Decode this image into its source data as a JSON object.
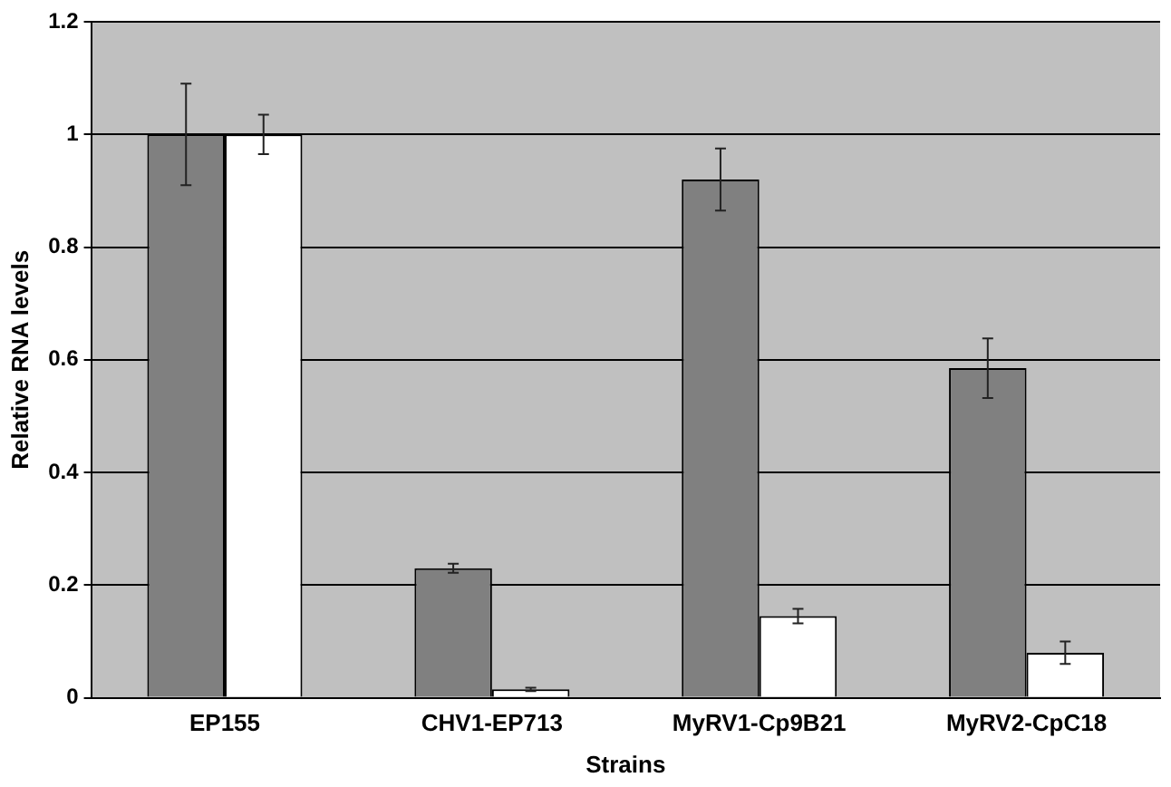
{
  "chart_data": {
    "type": "bar",
    "xlabel": "Strains",
    "ylabel": "Relative RNA levels",
    "categories": [
      "EP155",
      "CHV1-EP713",
      "MyRV1-Cp9B21",
      "MyRV2-CpC18"
    ],
    "series": [
      {
        "color": "#808080",
        "values": [
          1.0,
          0.23,
          0.92,
          0.585
        ],
        "errors": [
          0.09,
          0.008,
          0.055,
          0.053
        ]
      },
      {
        "color": "#ffffff",
        "values": [
          1.0,
          0.015,
          0.145,
          0.08
        ],
        "errors": [
          0.035,
          0.003,
          0.013,
          0.02
        ]
      }
    ],
    "ylim": [
      0,
      1.2
    ],
    "yticks": [
      0,
      0.2,
      0.4,
      0.6,
      0.8,
      1,
      1.2
    ],
    "grid": "y",
    "legend": false
  }
}
